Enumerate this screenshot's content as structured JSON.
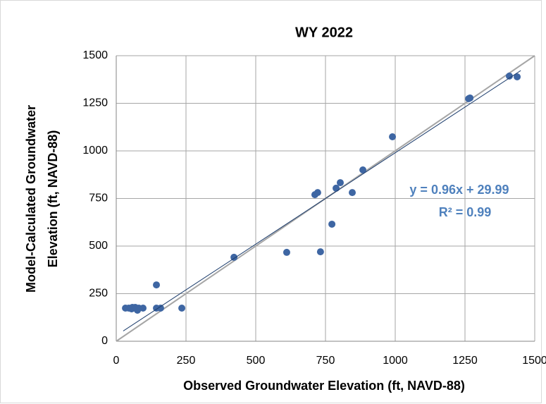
{
  "chart_data": {
    "type": "scatter",
    "title": "WY 2022",
    "xlabel": "Observed Groundwater Elevation (ft, NAVD-88)",
    "ylabel": [
      "Model-Calculated Groundwater",
      "Elevation (ft, NAVD-88)"
    ],
    "xlim": [
      0,
      1500
    ],
    "ylim": [
      0,
      1500
    ],
    "xticks": [
      0,
      250,
      500,
      750,
      1000,
      1250,
      1500
    ],
    "yticks": [
      0,
      250,
      500,
      750,
      1000,
      1250,
      1500
    ],
    "grid": true,
    "color": "#3e66a3",
    "x": [
      33,
      45,
      58,
      68,
      81,
      96,
      76,
      55,
      144,
      144,
      159,
      235,
      422,
      611,
      732,
      712,
      722,
      773,
      788,
      803,
      846,
      884,
      990,
      1263,
      1268,
      1409,
      1437
    ],
    "values": [
      174,
      174,
      178,
      178,
      174,
      174,
      163,
      170,
      296,
      174,
      174,
      174,
      441,
      467,
      470,
      770,
      781,
      615,
      804,
      833,
      781,
      900,
      1074,
      1274,
      1278,
      1393,
      1389
    ],
    "trendline": {
      "slope": 0.96,
      "intercept": 29.99,
      "color": "#1f3f6e"
    },
    "one_to_one_color": "#a6a6a6",
    "annotations": [
      "y = 0.96x + 29.99",
      "R² = 0.99"
    ]
  }
}
